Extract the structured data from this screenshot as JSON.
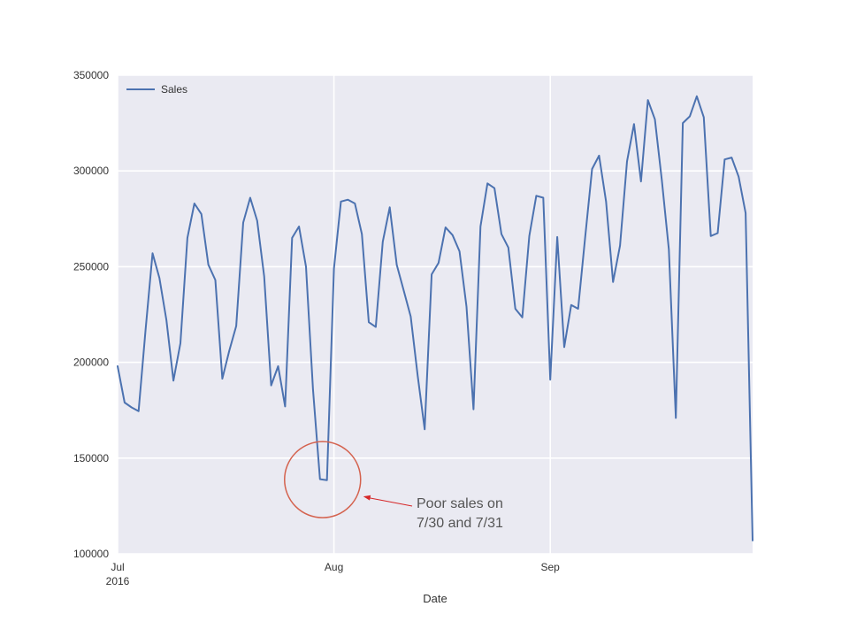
{
  "chart_data": {
    "type": "line",
    "title": "",
    "xlabel": "Date",
    "ylabel": "",
    "ylim": [
      100000,
      350000
    ],
    "xlim": [
      "2016-07-01",
      "2016-09-30"
    ],
    "yticks": [
      {
        "value": 100000,
        "label": "100000"
      },
      {
        "value": 150000,
        "label": "150000"
      },
      {
        "value": 200000,
        "label": "200000"
      },
      {
        "value": 250000,
        "label": "250000"
      },
      {
        "value": 300000,
        "label": "300000"
      },
      {
        "value": 350000,
        "label": "350000"
      }
    ],
    "xticks": [
      {
        "date": "2016-07-01",
        "label": "Jul",
        "sublabel": "2016"
      },
      {
        "date": "2016-08-01",
        "label": "Aug",
        "sublabel": ""
      },
      {
        "date": "2016-09-01",
        "label": "Sep",
        "sublabel": ""
      }
    ],
    "grid": true,
    "legend_position": "top-left",
    "series": [
      {
        "name": "Sales",
        "color": "#4c72b0",
        "x": [
          "2016-07-01",
          "2016-07-02",
          "2016-07-03",
          "2016-07-04",
          "2016-07-05",
          "2016-07-06",
          "2016-07-07",
          "2016-07-08",
          "2016-07-09",
          "2016-07-10",
          "2016-07-11",
          "2016-07-12",
          "2016-07-13",
          "2016-07-14",
          "2016-07-15",
          "2016-07-16",
          "2016-07-17",
          "2016-07-18",
          "2016-07-19",
          "2016-07-20",
          "2016-07-21",
          "2016-07-22",
          "2016-07-23",
          "2016-07-24",
          "2016-07-25",
          "2016-07-26",
          "2016-07-27",
          "2016-07-28",
          "2016-07-29",
          "2016-07-30",
          "2016-07-31",
          "2016-08-01",
          "2016-08-02",
          "2016-08-03",
          "2016-08-04",
          "2016-08-05",
          "2016-08-06",
          "2016-08-07",
          "2016-08-08",
          "2016-08-09",
          "2016-08-10",
          "2016-08-11",
          "2016-08-12",
          "2016-08-13",
          "2016-08-14",
          "2016-08-15",
          "2016-08-16",
          "2016-08-17",
          "2016-08-18",
          "2016-08-19",
          "2016-08-20",
          "2016-08-21",
          "2016-08-22",
          "2016-08-23",
          "2016-08-24",
          "2016-08-25",
          "2016-08-26",
          "2016-08-27",
          "2016-08-28",
          "2016-08-29",
          "2016-08-30",
          "2016-08-31",
          "2016-09-01",
          "2016-09-02",
          "2016-09-03",
          "2016-09-04",
          "2016-09-05",
          "2016-09-06",
          "2016-09-07",
          "2016-09-08",
          "2016-09-09",
          "2016-09-10",
          "2016-09-11",
          "2016-09-12",
          "2016-09-13",
          "2016-09-14",
          "2016-09-15",
          "2016-09-16",
          "2016-09-17",
          "2016-09-18",
          "2016-09-19",
          "2016-09-20",
          "2016-09-21",
          "2016-09-22",
          "2016-09-23",
          "2016-09-24",
          "2016-09-25",
          "2016-09-26",
          "2016-09-27",
          "2016-09-28",
          "2016-09-29",
          "2016-09-30"
        ],
        "values": [
          198000,
          179000,
          176500,
          174500,
          217000,
          257000,
          244000,
          222000,
          190500,
          210000,
          265000,
          283000,
          277500,
          251000,
          243000,
          191500,
          206000,
          219000,
          273000,
          286000,
          274000,
          245000,
          188000,
          198000,
          177000,
          265000,
          271000,
          250000,
          186000,
          139000,
          138500,
          249000,
          284000,
          285000,
          283000,
          267000,
          221000,
          218500,
          263000,
          281000,
          251000,
          237500,
          224000,
          193000,
          165000,
          246000,
          252000,
          270500,
          266500,
          258000,
          229000,
          175500,
          271000,
          293500,
          291000,
          267000,
          260000,
          228000,
          223500,
          266000,
          287000,
          286000,
          191000,
          265500,
          208000,
          230000,
          228000,
          265000,
          301000,
          308000,
          284000,
          242000,
          261000,
          305000,
          324500,
          294500,
          337000,
          327000,
          295000,
          259000,
          171000,
          325000,
          328500,
          339000,
          328000,
          266000,
          267500,
          306000,
          307000,
          297000,
          278000,
          107000
        ]
      }
    ],
    "annotation": {
      "lines": [
        "Poor sales on",
        "7/30 and 7/31"
      ],
      "highlighted_dates": [
        "2016-07-30",
        "2016-07-31"
      ],
      "circle_color": "#d4624e",
      "arrow_color": "#d62728"
    },
    "colors": {
      "plot_background": "#eaeaf2",
      "grid": "#ffffff",
      "line": "#4c72b0"
    }
  }
}
